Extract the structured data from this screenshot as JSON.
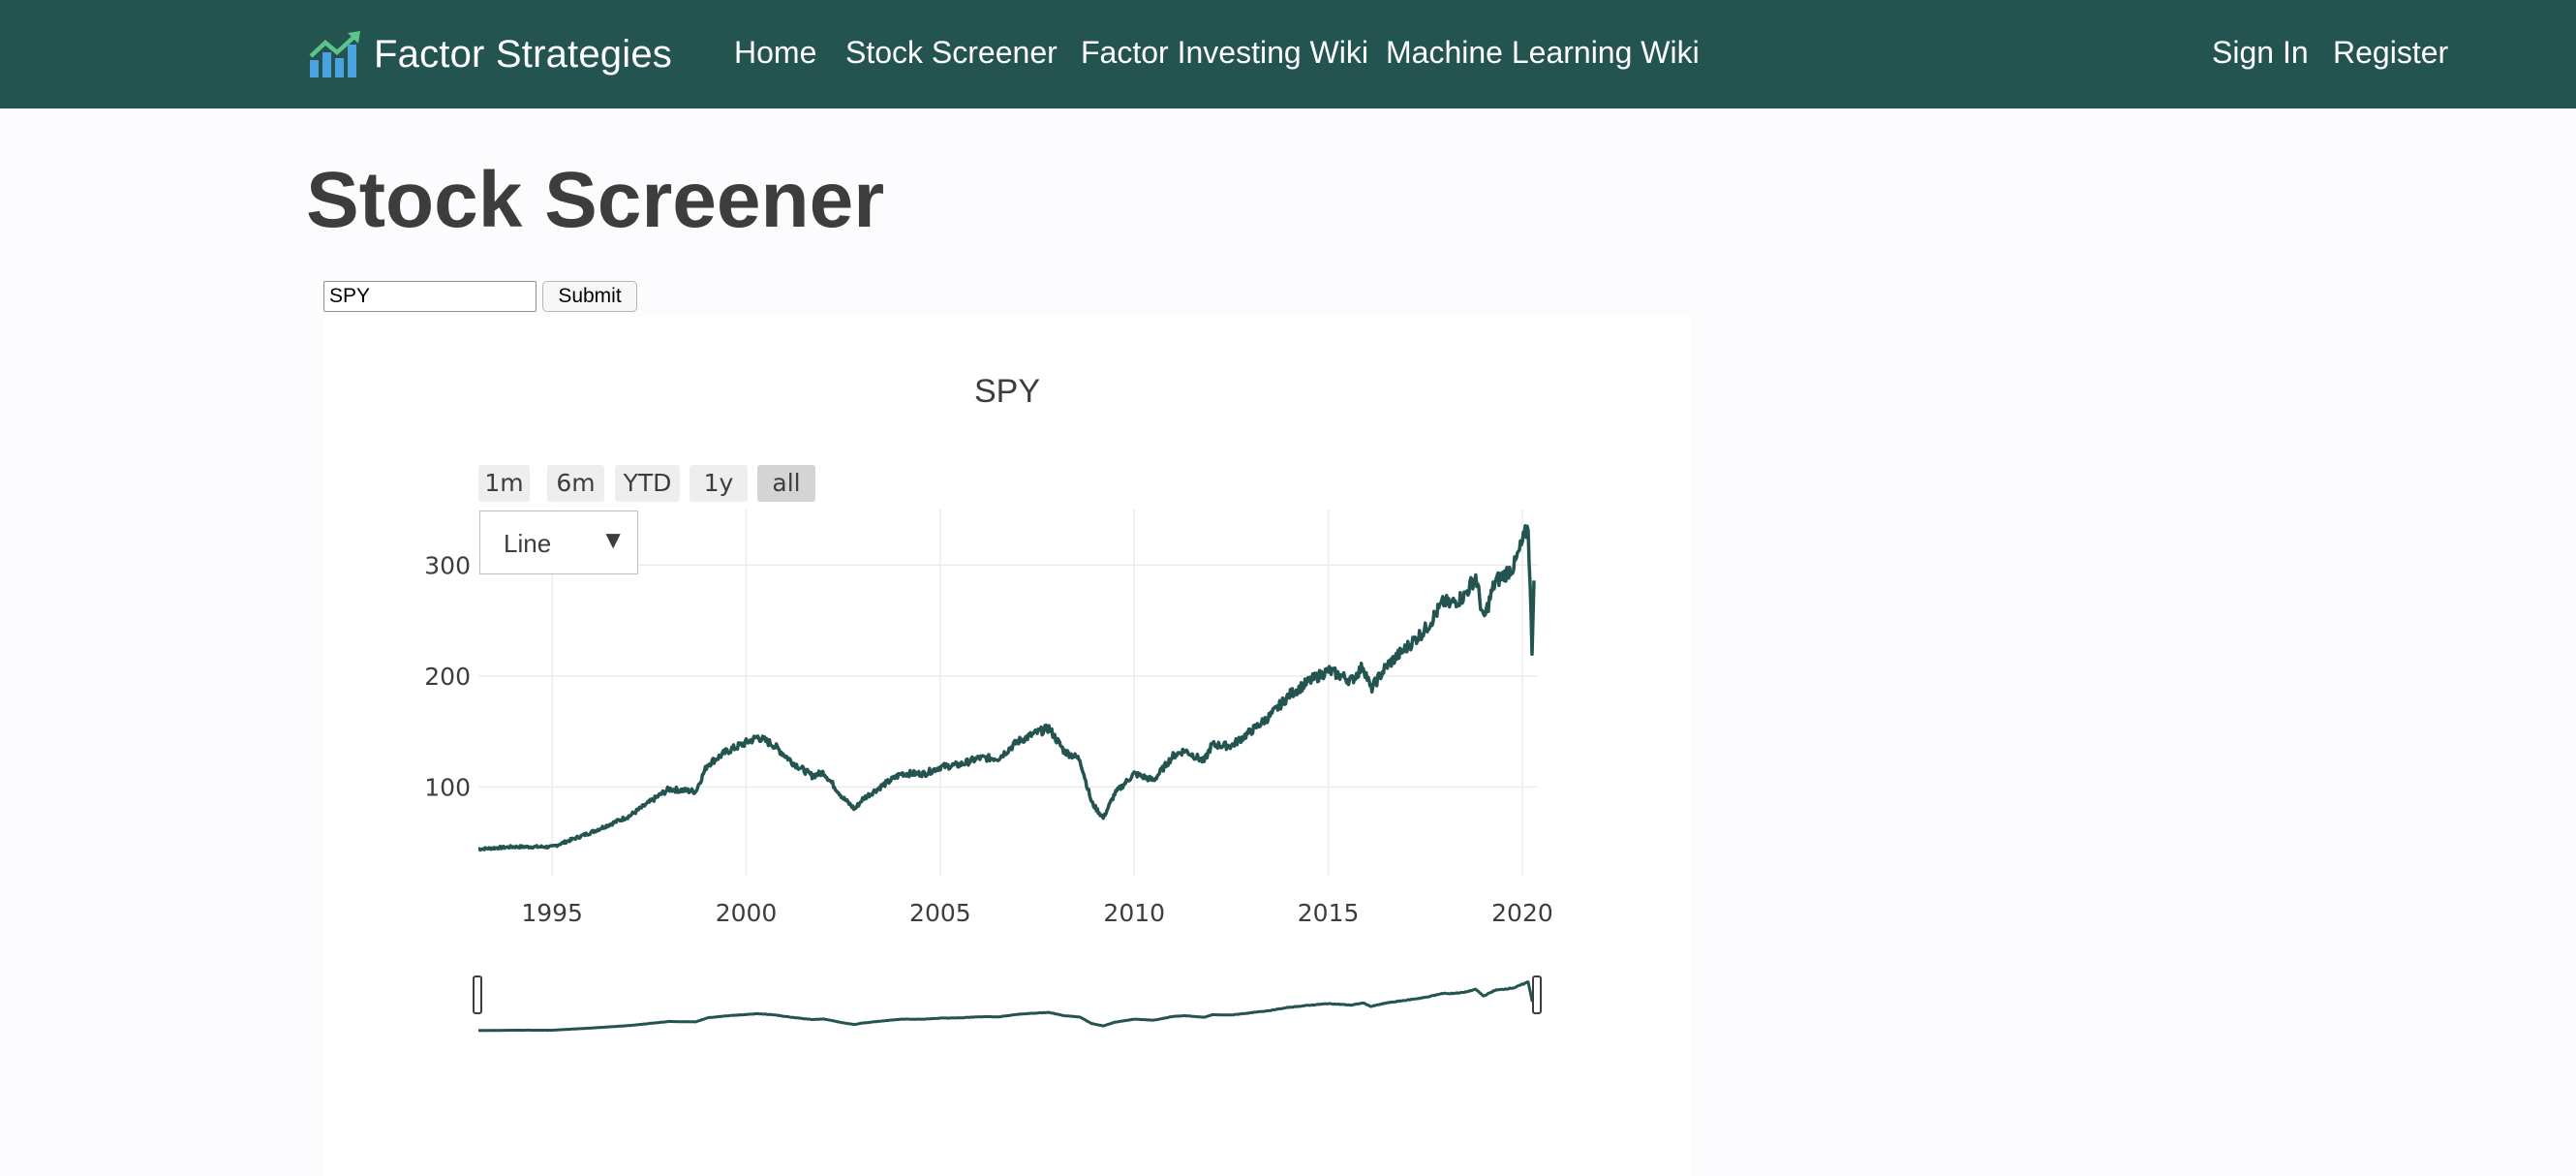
{
  "navbar": {
    "brand": "Factor Strategies",
    "links": [
      "Home",
      "Stock Screener",
      "Factor Investing Wiki",
      "Machine Learning Wiki"
    ],
    "auth": [
      "Sign In",
      "Register"
    ],
    "background": "#235450"
  },
  "page": {
    "title": "Stock Screener"
  },
  "search": {
    "value": "SPY",
    "submit_label": "Submit"
  },
  "chart_controls": {
    "range_buttons": [
      "1m",
      "6m",
      "YTD",
      "1y",
      "all"
    ],
    "active_range": "all",
    "chart_type": "Line"
  },
  "chart_data": {
    "type": "line",
    "title": "SPY",
    "xlabel": "",
    "ylabel": "",
    "line_color": "#235450",
    "grid": true,
    "x": [
      1993.1,
      1994.0,
      1995.0,
      1996.0,
      1997.0,
      1998.0,
      1998.7,
      1999.0,
      1999.5,
      2000.0,
      2000.3,
      2000.7,
      2001.2,
      2001.7,
      2002.0,
      2002.5,
      2002.8,
      2003.0,
      2003.5,
      2004.0,
      2004.6,
      2005.0,
      2005.5,
      2006.0,
      2006.5,
      2007.0,
      2007.5,
      2007.8,
      2008.2,
      2008.6,
      2008.9,
      2009.2,
      2009.5,
      2010.0,
      2010.5,
      2011.0,
      2011.3,
      2011.8,
      2012.0,
      2012.5,
      2013.0,
      2013.5,
      2014.0,
      2014.5,
      2015.0,
      2015.6,
      2015.9,
      2016.1,
      2016.5,
      2017.0,
      2017.5,
      2018.0,
      2018.1,
      2018.5,
      2018.8,
      2019.0,
      2019.3,
      2019.5,
      2019.8,
      2020.1,
      2020.15,
      2020.25,
      2020.3
    ],
    "y": [
      44,
      46,
      46,
      59,
      74,
      98,
      96,
      120,
      132,
      140,
      145,
      138,
      122,
      110,
      113,
      90,
      80,
      89,
      101,
      112,
      112,
      118,
      120,
      126,
      126,
      141,
      149,
      153,
      132,
      125,
      86,
      72,
      94,
      112,
      106,
      128,
      133,
      123,
      138,
      137,
      150,
      164,
      183,
      195,
      205,
      196,
      209,
      188,
      209,
      225,
      242,
      268,
      264,
      272,
      290,
      250,
      285,
      290,
      300,
      330,
      335,
      224,
      286
    ],
    "xaxis": {
      "range": [
        1993.1,
        2020.4
      ],
      "ticks": [
        1995,
        2000,
        2005,
        2010,
        2015,
        2020
      ],
      "tick_labels": [
        "1995",
        "2000",
        "2005",
        "2010",
        "2015",
        "2020"
      ]
    },
    "yaxis": {
      "range": [
        20,
        350
      ],
      "ticks": [
        100,
        200,
        300
      ],
      "tick_labels": [
        "100",
        "200",
        "300"
      ]
    },
    "rangeslider": true
  }
}
